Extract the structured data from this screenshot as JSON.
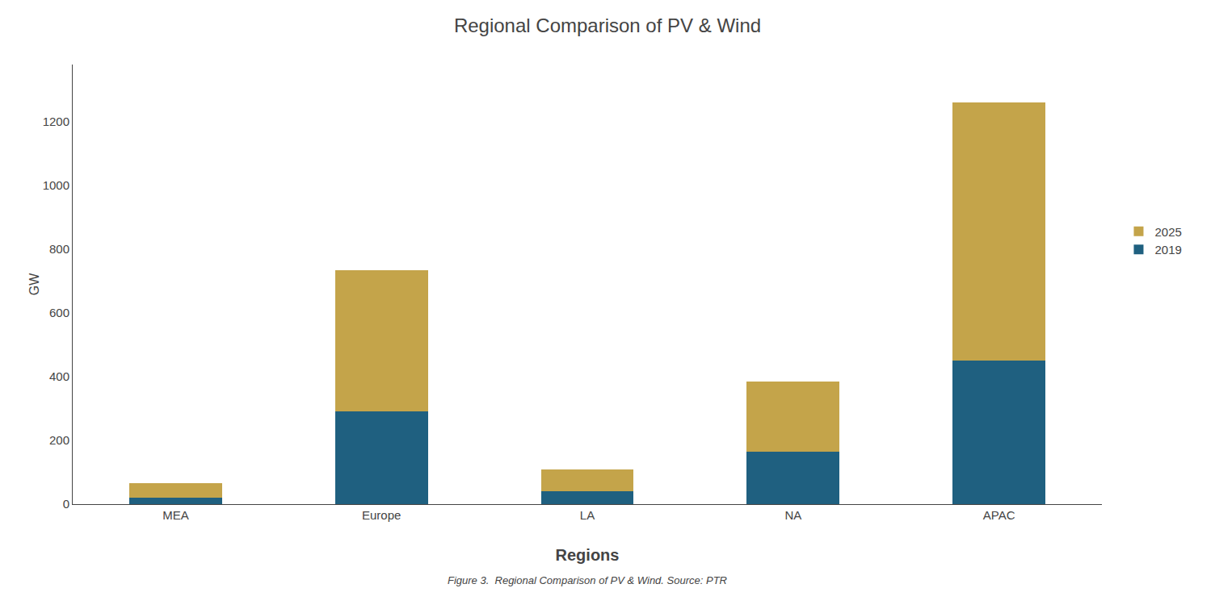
{
  "chart_data": {
    "type": "bar",
    "title": "Regional Comparison of PV & Wind",
    "caption": "Figure 3.  Regional Comparison of PV & Wind. Source: PTR",
    "xlabel": "Regions",
    "ylabel": "GW",
    "categories": [
      "MEA",
      "Europe",
      "LA",
      "NA",
      "APAC"
    ],
    "series": [
      {
        "name": "2019",
        "color": "#1F6080",
        "values": [
          20,
          290,
          40,
          165,
          450
        ]
      },
      {
        "name": "2025",
        "color": "#C4A44A",
        "values": [
          45,
          445,
          70,
          220,
          810
        ]
      }
    ],
    "stacked": true,
    "ylim": [
      0,
      1380
    ],
    "yticks": [
      0,
      200,
      400,
      600,
      800,
      1000,
      1200
    ],
    "grid": false,
    "legend": "right"
  }
}
